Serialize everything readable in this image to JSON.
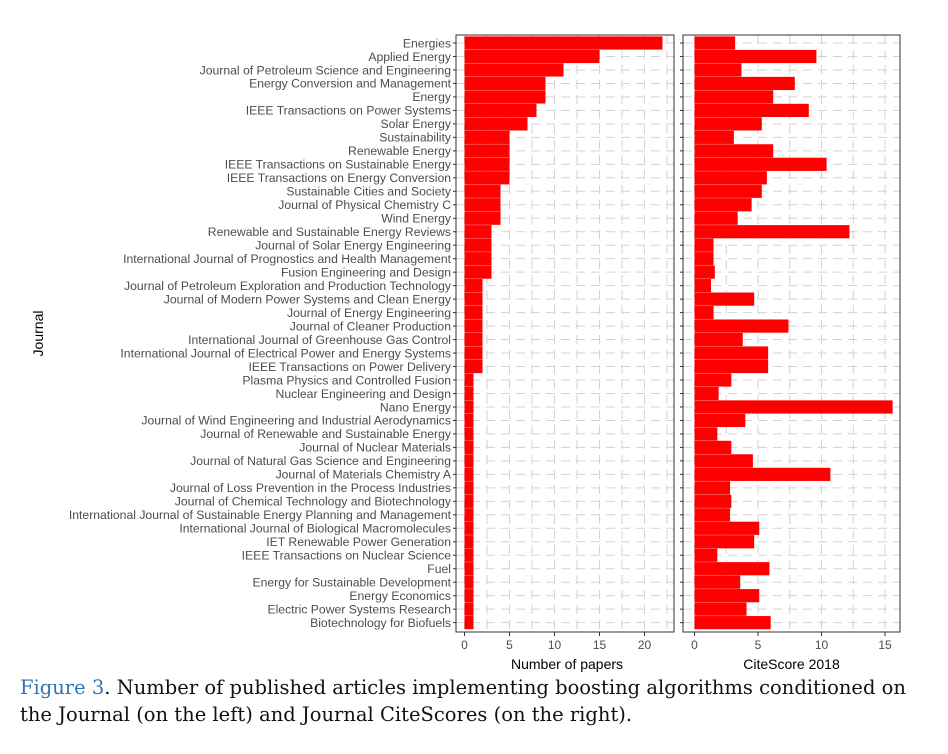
{
  "chart_data": [
    {
      "type": "bar",
      "orientation": "horizontal",
      "ylabel": "Journal",
      "xlabel": "Number of papers",
      "xlim": [
        0,
        22.5
      ],
      "xticks": [
        0,
        5,
        10,
        15,
        20
      ],
      "bar_color": "#ff0000",
      "grid": true,
      "categories": [
        "Energies",
        "Applied Energy",
        "Journal of Petroleum Science and Engineering",
        "Energy Conversion and Management",
        "Energy",
        "IEEE Transactions on Power Systems",
        "Solar Energy",
        "Sustainability",
        "Renewable Energy",
        "IEEE Transactions on Sustainable Energy",
        "IEEE Transactions on Energy Conversion",
        "Sustainable Cities and Society",
        "Journal of Physical Chemistry C",
        "Wind Energy",
        "Renewable and Sustainable Energy Reviews",
        "Journal of Solar Energy Engineering",
        "International Journal of Prognostics and Health Management",
        "Fusion Engineering and Design",
        "Journal of Petroleum Exploration and Production Technology",
        "Journal of Modern Power Systems and Clean Energy",
        "Journal of Energy Engineering",
        "Journal of Cleaner Production",
        "International Journal of Greenhouse Gas Control",
        "International Journal of Electrical Power and Energy Systems",
        "IEEE Transactions on Power Delivery",
        "Plasma Physics and Controlled Fusion",
        "Nuclear Engineering and Design",
        "Nano Energy",
        "Journal of Wind Engineering and Industrial Aerodynamics",
        "Journal of Renewable and Sustainable Energy",
        "Journal of Nuclear Materials",
        "Journal of Natural Gas Science and Engineering",
        "Journal of Materials Chemistry A",
        "Journal of Loss Prevention in the Process Industries",
        "Journal of Chemical Technology and Biotechnology",
        "International Journal of Sustainable Energy Planning and Management",
        "International Journal of Biological Macromolecules",
        "IET Renewable Power Generation",
        "IEEE Transactions on Nuclear Science",
        "Fuel",
        "Energy for Sustainable Development",
        "Energy Economics",
        "Electric Power Systems Research",
        "Biotechnology for Biofuels"
      ],
      "values": [
        22,
        15,
        11,
        9,
        9,
        8,
        7,
        5,
        5,
        5,
        5,
        4,
        4,
        4,
        3,
        3,
        3,
        3,
        2,
        2,
        2,
        2,
        2,
        2,
        2,
        1,
        1,
        1,
        1,
        1,
        1,
        1,
        1,
        1,
        1,
        1,
        1,
        1,
        1,
        1,
        1,
        1,
        1,
        1
      ]
    },
    {
      "type": "bar",
      "orientation": "horizontal",
      "xlabel": "CiteScore 2018",
      "xlim": [
        0,
        15.6
      ],
      "xticks": [
        0,
        5,
        10,
        15
      ],
      "bar_color": "#ff0000",
      "grid": true,
      "values": [
        3.2,
        9.6,
        3.7,
        7.9,
        6.2,
        9.0,
        5.3,
        3.1,
        6.2,
        10.4,
        5.7,
        5.3,
        4.5,
        3.4,
        12.2,
        1.5,
        1.5,
        1.6,
        1.3,
        4.7,
        1.5,
        7.4,
        3.8,
        5.8,
        5.8,
        2.9,
        1.9,
        15.6,
        4.0,
        1.8,
        2.9,
        4.6,
        10.7,
        2.8,
        2.9,
        2.8,
        5.1,
        4.7,
        1.8,
        5.9,
        3.6,
        5.1,
        4.1,
        6.0
      ]
    }
  ],
  "caption": {
    "figure_label": "Figure 3",
    "text": ". Number of published articles implementing boosting algorithms conditioned on the Journal (on the left) and Journal CiteScores (on the right)."
  }
}
